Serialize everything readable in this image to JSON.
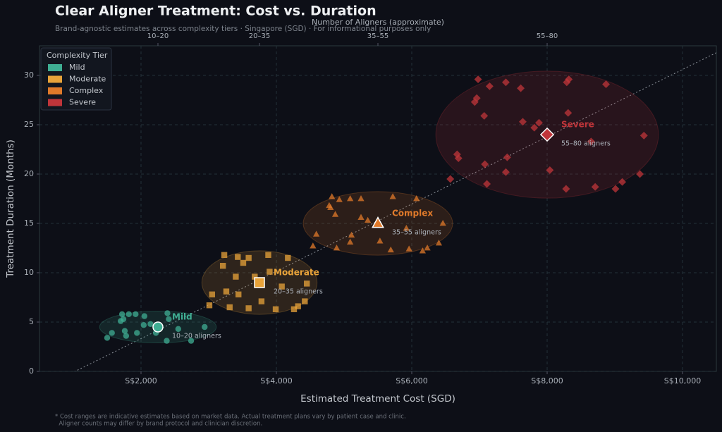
{
  "chart_data": {
    "type": "scatter",
    "title": "Clear Aligner Treatment: Cost vs. Duration",
    "subtitle": "Brand-agnostic estimates across complexity tiers  ·  Singapore (SGD)  ·  For informational purposes only",
    "xlabel": "Estimated Treatment Cost (SGD)",
    "ylabel": "Treatment Duration (Months)",
    "x2label": "Number of Aligners (approximate)",
    "xlim": [
      500,
      10500
    ],
    "ylim": [
      0,
      33
    ],
    "xticks": [
      {
        "value": 2000,
        "label": "S$2,000"
      },
      {
        "value": 4000,
        "label": "S$4,000"
      },
      {
        "value": 6000,
        "label": "S$6,000"
      },
      {
        "value": 8000,
        "label": "S$8,000"
      },
      {
        "value": 10000,
        "label": "S$10,000"
      }
    ],
    "yticks": [
      0,
      5,
      10,
      15,
      20,
      25,
      30
    ],
    "x2ticks": [
      {
        "value": 2250,
        "label": "10–20"
      },
      {
        "value": 3750,
        "label": "20–35"
      },
      {
        "value": 5500,
        "label": "35–55"
      },
      {
        "value": 8000,
        "label": "55–80"
      }
    ],
    "grid": true,
    "legend": "upper left",
    "legend_title": "Complexity Tier",
    "footnote": [
      "* Cost ranges are indicative estimates based on market data. Actual treatment plans vary by patient case and clinic.",
      "  Aligner counts may differ by brand protocol and clinician discretion."
    ],
    "series": [
      {
        "name": "Mild",
        "color": "#3fae93",
        "marker": "circle",
        "aligners_label": "10–20 aligners",
        "center": {
          "x": 2250,
          "y": 4.5
        },
        "x": [
          1570,
          1500,
          1720,
          1740,
          1820,
          1920,
          2050,
          1760,
          1780,
          1940,
          2040,
          2220,
          2390,
          2410,
          2380,
          2550,
          2740,
          2940,
          2140,
          1700
        ],
        "values": [
          3.9,
          3.4,
          5.8,
          5.3,
          5.8,
          5.8,
          5.6,
          4.1,
          3.6,
          3.9,
          4.7,
          3.9,
          5.9,
          5.3,
          3.1,
          4.3,
          3.1,
          4.5,
          4.8,
          5.1
        ]
      },
      {
        "name": "Moderate",
        "color": "#e8a33a",
        "marker": "square",
        "aligners_label": "20–35 aligners",
        "center": {
          "x": 3750,
          "y": 9
        },
        "x": [
          3230,
          3210,
          3430,
          3590,
          3880,
          4170,
          3050,
          3010,
          3260,
          3310,
          3440,
          3400,
          3590,
          3680,
          3780,
          3900,
          3990,
          4080,
          4260,
          4320,
          4450,
          4420,
          3510
        ],
        "values": [
          11.8,
          10.7,
          11.6,
          11.5,
          11.8,
          11.5,
          7.8,
          6.7,
          8.1,
          6.5,
          7.8,
          9.6,
          6.4,
          9.6,
          7.1,
          10.1,
          6.3,
          8.6,
          6.3,
          6.6,
          8.9,
          7.1,
          11.0
        ]
      },
      {
        "name": "Complex",
        "color": "#e07a2a",
        "marker": "triangle",
        "aligners_label": "35–55 aligners",
        "center": {
          "x": 5500,
          "y": 15
        },
        "x": [
          4820,
          4780,
          4870,
          4930,
          5090,
          5250,
          5720,
          6070,
          4590,
          4540,
          4890,
          5090,
          5110,
          5250,
          5350,
          5530,
          5690,
          5920,
          5960,
          6160,
          6230,
          6400,
          6460,
          4800
        ],
        "values": [
          17.7,
          16.8,
          15.9,
          17.4,
          17.5,
          17.5,
          17.7,
          17.5,
          13.9,
          12.7,
          12.5,
          13.1,
          13.8,
          15.6,
          15.3,
          13.2,
          12.3,
          14.5,
          12.4,
          12.2,
          12.5,
          13.0,
          15.0,
          16.6
        ]
      },
      {
        "name": "Severe",
        "color": "#c0353a",
        "marker": "diamond",
        "aligners_label": "55–80 aligners",
        "center": {
          "x": 8000,
          "y": 24
        },
        "x": [
          6980,
          7150,
          7390,
          7610,
          6960,
          6930,
          7070,
          7640,
          7810,
          7880,
          8320,
          8290,
          8870,
          8310,
          9430,
          7410,
          6670,
          6690,
          7080,
          6570,
          7390,
          8040,
          7110,
          8280,
          8710,
          9010,
          9110,
          9370,
          8650
        ],
        "values": [
          29.6,
          28.9,
          29.3,
          28.7,
          27.7,
          27.3,
          25.9,
          25.3,
          24.7,
          25.2,
          29.6,
          29.3,
          29.1,
          26.2,
          23.9,
          21.7,
          22.0,
          21.6,
          21.0,
          19.5,
          20.2,
          20.4,
          19.0,
          18.5,
          18.7,
          18.5,
          19.2,
          20.0,
          23.3
        ]
      }
    ]
  }
}
